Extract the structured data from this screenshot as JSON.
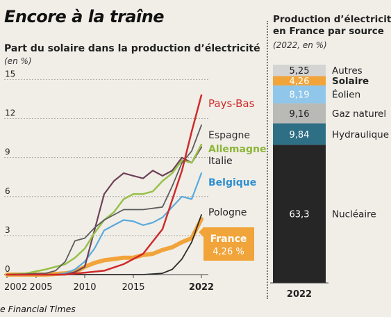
{
  "headline": "Encore à la traîne",
  "left_subtitle": "Part du solaire dans la production d’électricité",
  "left_unit": "(en %)",
  "right_title_line1": "Production d’électricité",
  "right_title_line2": "en France par source",
  "right_unit": "(2022, en %)",
  "source": "e Financial Times",
  "colors": {
    "pays_bas": "#cf2a2a",
    "espagne": "#5c5c5c",
    "allemagne": "#98c04a",
    "italie": "#6e4058",
    "belgique": "#5aaadc",
    "pologne": "#2b2b2b",
    "france": "#f1a43a",
    "autres": "#d4d4d4",
    "solaire": "#f1a43a",
    "eolien": "#8fc6ea",
    "gaz": "#b9b9b6",
    "hydro": "#2f6f86",
    "nucleaire": "#262626"
  },
  "chart_data": [
    {
      "type": "line",
      "ylabel": "(en %)",
      "x_ticks": [
        "2002",
        "2005",
        "2010",
        "2015",
        "2022"
      ],
      "y_ticks": [
        "0",
        "3",
        "6",
        "9",
        "12",
        "15"
      ],
      "xlim": [
        2002,
        2023
      ],
      "ylim": [
        0,
        15
      ],
      "series": [
        {
          "name": "Pays-Bas",
          "color_key": "pays_bas",
          "label_color": "#cf2a2a",
          "width": 2.5,
          "x": [
            2002,
            2008,
            2012,
            2014,
            2016,
            2018,
            2020,
            2021,
            2022
          ],
          "y": [
            0,
            0,
            0.3,
            0.8,
            1.6,
            3.5,
            8.0,
            11.0,
            13.8
          ]
        },
        {
          "name": "Espagne",
          "color_key": "espagne",
          "label_color": "#333333",
          "width": 1.8,
          "x": [
            2002,
            2006,
            2007,
            2008,
            2009,
            2010,
            2011,
            2012,
            2014,
            2016,
            2018,
            2019,
            2020,
            2021,
            2022
          ],
          "y": [
            0,
            0.1,
            0.3,
            1.0,
            2.6,
            2.8,
            3.6,
            4.2,
            5.0,
            5.0,
            5.2,
            6.8,
            8.6,
            9.5,
            11.5
          ]
        },
        {
          "name": "Allemagne",
          "color_key": "allemagne",
          "label_color": "#8cb53a",
          "width": 2.5,
          "x": [
            2002,
            2004,
            2006,
            2008,
            2009,
            2010,
            2011,
            2012,
            2013,
            2014,
            2015,
            2016,
            2017,
            2018,
            2019,
            2020,
            2021,
            2022
          ],
          "y": [
            0,
            0.1,
            0.4,
            0.8,
            1.3,
            2.0,
            3.2,
            4.2,
            4.8,
            5.8,
            6.2,
            6.2,
            6.4,
            7.2,
            7.8,
            8.8,
            8.6,
            10.0
          ]
        },
        {
          "name": "Italie",
          "color_key": "italie",
          "label_color": "#222222",
          "width": 2.2,
          "x": [
            2002,
            2008,
            2009,
            2010,
            2011,
            2012,
            2013,
            2014,
            2015,
            2016,
            2017,
            2018,
            2019,
            2020,
            2021,
            2022
          ],
          "y": [
            0,
            0,
            0.2,
            0.6,
            3.4,
            6.2,
            7.2,
            7.8,
            7.6,
            7.4,
            8.0,
            7.6,
            8.0,
            9.0,
            8.6,
            9.8
          ]
        },
        {
          "name": "Belgique",
          "color_key": "belgique",
          "label_color": "#2f8fcf",
          "width": 2.2,
          "x": [
            2002,
            2007,
            2008,
            2009,
            2010,
            2011,
            2012,
            2013,
            2014,
            2015,
            2016,
            2017,
            2018,
            2019,
            2020,
            2021,
            2022
          ],
          "y": [
            0,
            0,
            0.1,
            0.4,
            1.0,
            2.0,
            3.4,
            3.8,
            4.2,
            4.1,
            3.8,
            4.0,
            4.4,
            5.2,
            6.0,
            5.8,
            7.8
          ]
        },
        {
          "name": "Pologne",
          "color_key": "pologne",
          "label_color": "#222222",
          "width": 1.8,
          "x": [
            2002,
            2016,
            2018,
            2019,
            2020,
            2021,
            2022
          ],
          "y": [
            0,
            0,
            0.1,
            0.4,
            1.2,
            2.5,
            4.6
          ]
        },
        {
          "name": "France",
          "color_key": "france",
          "label_color": "#ffffff",
          "width": 6,
          "x": [
            2002,
            2006,
            2008,
            2009,
            2010,
            2011,
            2012,
            2013,
            2014,
            2015,
            2016,
            2017,
            2018,
            2019,
            2020,
            2021,
            2022
          ],
          "y": [
            0,
            0,
            0.1,
            0.2,
            0.6,
            0.9,
            1.1,
            1.2,
            1.3,
            1.3,
            1.5,
            1.6,
            1.9,
            2.1,
            2.5,
            2.8,
            4.26
          ]
        }
      ],
      "france_label_value": "4,26 %"
    },
    {
      "type": "bar",
      "title": "Production d’électricité en France par source",
      "ylabel": "(2022, en %)",
      "x_tick": "2022",
      "stack": [
        {
          "name": "Nucléaire",
          "value": 63.3,
          "label": "63,3",
          "color_key": "nucleaire",
          "text_color": "#ffffff",
          "bold": false
        },
        {
          "name": "Hydraulique",
          "value": 9.84,
          "label": "9,84",
          "color_key": "hydro",
          "text_color": "#ffffff",
          "bold": false
        },
        {
          "name": "Gaz naturel",
          "value": 9.16,
          "label": "9,16",
          "color_key": "gaz",
          "text_color": "#1c1c1c",
          "bold": false
        },
        {
          "name": "Éolien",
          "value": 8.19,
          "label": "8,19",
          "color_key": "eolien",
          "text_color": "#ffffff",
          "bold": false
        },
        {
          "name": "Solaire",
          "value": 4.26,
          "label": "4,26",
          "color_key": "solaire",
          "text_color": "#ffffff",
          "bold": true
        },
        {
          "name": "Autres",
          "value": 5.25,
          "label": "5,25",
          "color_key": "autres",
          "text_color": "#1c1c1c",
          "bold": false
        }
      ]
    }
  ]
}
